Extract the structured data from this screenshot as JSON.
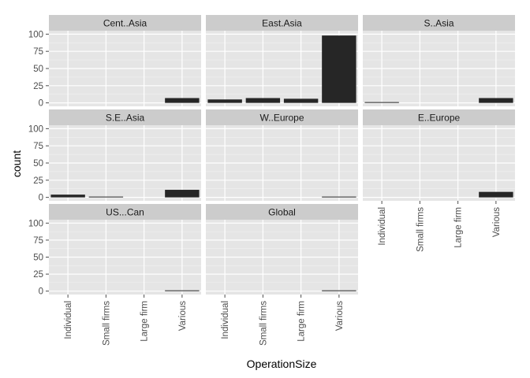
{
  "chart_data": {
    "type": "bar",
    "style": "ggplot2 facet_wrap",
    "xlabel": "OperationSize",
    "ylabel": "count",
    "categories": [
      "Individual",
      "Small firms",
      "Large firm",
      "Various"
    ],
    "yticks": [
      0,
      25,
      50,
      75,
      100
    ],
    "ylim": [
      -5,
      105
    ],
    "grid": true,
    "bar_color": "#262626",
    "panel_color": "#e5e5e5",
    "strip_color": "#cccccc",
    "ncol": 3,
    "facets": [
      {
        "name": "Cent..Asia",
        "values": [
          0,
          0,
          0,
          7
        ]
      },
      {
        "name": "East.Asia",
        "values": [
          5,
          7,
          6,
          98
        ]
      },
      {
        "name": "S..Asia",
        "values": [
          1,
          0,
          0,
          7
        ]
      },
      {
        "name": "S.E..Asia",
        "values": [
          4,
          1,
          0,
          11
        ]
      },
      {
        "name": "W..Europe",
        "values": [
          0,
          0,
          0,
          1
        ]
      },
      {
        "name": "E..Europe",
        "values": [
          0,
          0,
          0,
          8
        ]
      },
      {
        "name": "US...Can",
        "values": [
          0,
          0,
          0,
          1
        ]
      },
      {
        "name": "Global",
        "values": [
          0,
          0,
          0,
          1
        ]
      }
    ]
  }
}
